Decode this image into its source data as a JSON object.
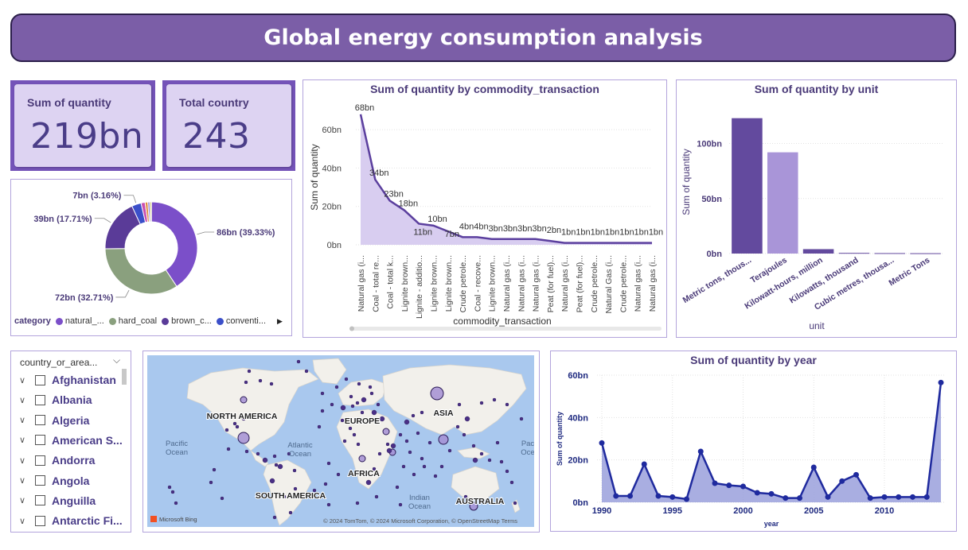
{
  "title": "Global energy consumption analysis",
  "kpis": [
    {
      "label": "Sum of quantity",
      "value": "219bn"
    },
    {
      "label": "Total country",
      "value": "243"
    }
  ],
  "donut": {
    "legend_title": "category",
    "legend_items": [
      {
        "label": "natural_...",
        "color": "#7b4fc9"
      },
      {
        "label": "hard_coal",
        "color": "#8aa07e"
      },
      {
        "label": "brown_c...",
        "color": "#5a3b98"
      },
      {
        "label": "conventi...",
        "color": "#3b4fc9"
      }
    ],
    "chart_data": {
      "type": "pie",
      "slices": [
        {
          "label": "natural_...",
          "value": 86,
          "text": "86bn (39.33%)",
          "color": "#7b4fc9"
        },
        {
          "label": "hard_coal",
          "value": 72,
          "text": "72bn (32.71%)",
          "color": "#8aa07e"
        },
        {
          "label": "brown_c...",
          "value": 39,
          "text": "39bn (17.71%)",
          "color": "#5a3b98"
        },
        {
          "label": "conventi...",
          "value": 7,
          "text": "7bn (3.16%)",
          "color": "#3b4fc9"
        },
        {
          "label": "",
          "value": 3,
          "text": "",
          "color": "#c84fb0"
        },
        {
          "label": "",
          "value": 2,
          "text": "",
          "color": "#e08b3c"
        },
        {
          "label": "",
          "value": 1.5,
          "text": "",
          "color": "#8f7cd8"
        },
        {
          "label": "",
          "value": 1.2,
          "text": "",
          "color": "#c9c36b"
        }
      ]
    }
  },
  "line_chart": {
    "title": "Sum of quantity by commodity_transaction",
    "chart_data": {
      "type": "area",
      "title": "Sum of quantity by commodity_transaction",
      "xlabel": "commodity_transaction",
      "ylabel": "Sum of quantity",
      "ylim": [
        0,
        70
      ],
      "yticks": [
        "0bn",
        "20bn",
        "40bn",
        "60bn"
      ],
      "categories": [
        "Natural gas (i...",
        "Coal - total re...",
        "Coal - total k...",
        "Lignite brown...",
        "Lignite - additio...",
        "Lignite brown...",
        "Lignite brown...",
        "Crude petrole...",
        "Coal - recove...",
        "Lignite brown...",
        "Natural gas (i...",
        "Natural gas (i...",
        "Natural gas (i...",
        "Peat (for fuel)...",
        "Natural gas (i...",
        "Peat (for fuel)...",
        "Crude petrole...",
        "Natural Gas (i...",
        "Crude petrole...",
        "Natural gas (i...",
        "Natural gas (i..."
      ],
      "values": [
        68,
        34,
        23,
        18,
        11,
        10,
        7,
        4,
        4,
        3,
        3,
        3,
        3,
        2,
        1,
        1,
        1,
        1,
        1,
        1,
        1
      ],
      "labels": [
        "68bn",
        "34bn",
        "23bn",
        "18bn",
        "11bn",
        "10bn",
        "7bn",
        "4bn",
        "4bn",
        "3bn",
        "3bn",
        "3bn",
        "3bn",
        "2bn",
        "1bn",
        "1bn",
        "1bn",
        "1bn",
        "1bn",
        "1bn",
        "1bn"
      ]
    }
  },
  "bar_chart": {
    "title": "Sum of quantity by unit",
    "chart_data": {
      "type": "bar",
      "title": "Sum of quantity by unit",
      "xlabel": "unit",
      "ylabel": "Sum of quantity",
      "ylim": [
        0,
        130
      ],
      "yticks": [
        "0bn",
        "50bn",
        "100bn"
      ],
      "categories": [
        "Metric tons, thous...",
        "Terajoules",
        "Kilowatt-hours, million",
        "Kilowatts, thousand",
        "Cubic metres, thousa...",
        "Metric Tons"
      ],
      "values": [
        123,
        92,
        4,
        0.6,
        0.4,
        0.3
      ],
      "colors": [
        "#634a9e",
        "#a995d8",
        "#634a9e",
        "#634a9e",
        "#634a9e",
        "#634a9e"
      ]
    }
  },
  "slicer": {
    "header": "country_or_area...",
    "items": [
      "Afghanistan",
      "Albania",
      "Algeria",
      "American S...",
      "Andorra",
      "Angola",
      "Anguilla",
      "Antarctic Fi..."
    ]
  },
  "map": {
    "labels": {
      "north_america": "NORTH AMERICA",
      "europe": "EUROPE",
      "asia": "ASIA",
      "africa": "AFRICA",
      "south_america": "SOUTH AMERICA",
      "australia": "AUSTRALIA",
      "pacific_left": "Pacific Ocean",
      "atlantic": "Atlantic Ocean",
      "indian": "Indian Ocean",
      "pacific_right": "Pac Oce"
    },
    "attribution": "© 2024 TomTom, © 2024 Microsoft Corporation, © OpenStreetMap  Terms",
    "logo": "Microsoft Bing"
  },
  "year_chart": {
    "title": "Sum of quantity by year",
    "chart_data": {
      "type": "area",
      "title": "Sum of quantity by year",
      "xlabel": "year",
      "ylabel": "Sum of quantity",
      "xlim": [
        1990,
        2014
      ],
      "ylim": [
        0,
        60
      ],
      "xticks": [
        "1990",
        "1995",
        "2000",
        "2005",
        "2010"
      ],
      "yticks": [
        "0bn",
        "20bn",
        "40bn",
        "60bn"
      ],
      "x": [
        1990,
        1991,
        1992,
        1993,
        1994,
        1995,
        1996,
        1997,
        1998,
        1999,
        2000,
        2001,
        2002,
        2003,
        2004,
        2005,
        2006,
        2007,
        2008,
        2009,
        2010,
        2011,
        2012,
        2013,
        2014
      ],
      "values": [
        28,
        3,
        3,
        18,
        3,
        2.5,
        1.5,
        24,
        9,
        8,
        7.5,
        4.5,
        4,
        2,
        2,
        16.5,
        2.5,
        10,
        13,
        2,
        2.5,
        2.5,
        2.5,
        2.5,
        56.5
      ]
    }
  }
}
